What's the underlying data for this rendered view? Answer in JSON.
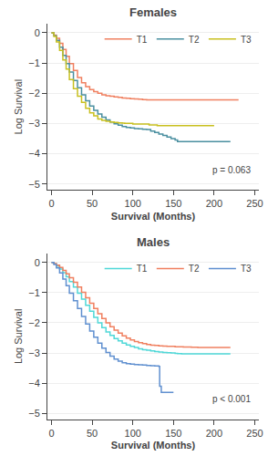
{
  "chart_data": [
    {
      "type": "step",
      "title": "Females",
      "x_label": "Survival (Months)",
      "y_label": "Log Survival",
      "xlim": [
        -5,
        255
      ],
      "ylim": [
        -5.2,
        0.3
      ],
      "xticks": [
        0,
        50,
        100,
        150,
        200,
        250
      ],
      "yticks": [
        0,
        -1,
        -2,
        -3,
        -4,
        -5
      ],
      "grid": "y",
      "legend": "upper right",
      "annotations": [
        {
          "text": "p = 0.063"
        }
      ],
      "series": [
        {
          "name": "T1",
          "color": "#f08060",
          "x": [
            0,
            3,
            6,
            10,
            14,
            18,
            22,
            27,
            32,
            37,
            42,
            47,
            52,
            57,
            62,
            67,
            72,
            77,
            82,
            87,
            92,
            97,
            102,
            107,
            112,
            117,
            120,
            230
          ],
          "values": [
            0,
            -0.08,
            -0.18,
            -0.35,
            -0.55,
            -0.78,
            -1.02,
            -1.25,
            -1.48,
            -1.65,
            -1.78,
            -1.88,
            -1.95,
            -2.0,
            -2.05,
            -2.08,
            -2.1,
            -2.12,
            -2.14,
            -2.16,
            -2.17,
            -2.18,
            -2.19,
            -2.2,
            -2.21,
            -2.22,
            -2.22,
            -2.22
          ]
        },
        {
          "name": "T2",
          "color": "#4a8fa0",
          "x": [
            0,
            3,
            6,
            10,
            14,
            18,
            22,
            27,
            32,
            37,
            42,
            47,
            52,
            57,
            62,
            67,
            72,
            77,
            82,
            87,
            92,
            97,
            102,
            107,
            112,
            117,
            122,
            127,
            132,
            137,
            142,
            147,
            152,
            155,
            220
          ],
          "values": [
            0,
            -0.1,
            -0.25,
            -0.48,
            -0.75,
            -1.02,
            -1.3,
            -1.58,
            -1.82,
            -2.05,
            -2.25,
            -2.42,
            -2.57,
            -2.69,
            -2.79,
            -2.88,
            -2.95,
            -3.01,
            -3.06,
            -3.1,
            -3.13,
            -3.15,
            -3.17,
            -3.18,
            -3.19,
            -3.2,
            -3.25,
            -3.3,
            -3.35,
            -3.4,
            -3.45,
            -3.5,
            -3.55,
            -3.6,
            -3.6
          ]
        },
        {
          "name": "T3",
          "color": "#c8c020",
          "x": [
            0,
            3,
            6,
            10,
            14,
            18,
            22,
            27,
            32,
            37,
            42,
            47,
            52,
            57,
            62,
            67,
            72,
            77,
            82,
            87,
            90,
            100,
            120,
            130,
            200
          ],
          "values": [
            0,
            -0.12,
            -0.3,
            -0.58,
            -0.9,
            -1.2,
            -1.55,
            -1.85,
            -2.1,
            -2.3,
            -2.5,
            -2.65,
            -2.75,
            -2.85,
            -2.9,
            -2.93,
            -2.95,
            -2.97,
            -2.98,
            -2.99,
            -3.0,
            -3.02,
            -3.05,
            -3.07,
            -3.07
          ]
        }
      ]
    },
    {
      "type": "step",
      "title": "Males",
      "x_label": "Survival (Months)",
      "y_label": "Log Survival",
      "xlim": [
        -5,
        255
      ],
      "ylim": [
        -5.2,
        0.3
      ],
      "xticks": [
        0,
        50,
        100,
        150,
        200,
        250
      ],
      "yticks": [
        0,
        -1,
        -2,
        -3,
        -4,
        -5
      ],
      "grid": "y",
      "legend": "upper right",
      "annotations": [
        {
          "text": "p < 0.001"
        }
      ],
      "series": [
        {
          "name": "T1",
          "color": "#50d8d8",
          "x": [
            0,
            3,
            6,
            10,
            14,
            18,
            22,
            27,
            32,
            37,
            42,
            47,
            52,
            57,
            62,
            67,
            72,
            77,
            82,
            87,
            92,
            97,
            102,
            107,
            112,
            117,
            122,
            127,
            132,
            137,
            142,
            147,
            152,
            155,
            160,
            220
          ],
          "values": [
            0,
            -0.05,
            -0.12,
            -0.22,
            -0.34,
            -0.48,
            -0.64,
            -0.82,
            -1.02,
            -1.22,
            -1.42,
            -1.62,
            -1.82,
            -2.0,
            -2.16,
            -2.3,
            -2.42,
            -2.52,
            -2.6,
            -2.67,
            -2.73,
            -2.78,
            -2.82,
            -2.86,
            -2.89,
            -2.91,
            -2.93,
            -2.95,
            -2.97,
            -2.98,
            -2.99,
            -3.0,
            -3.01,
            -3.02,
            -3.03,
            -3.03
          ]
        },
        {
          "name": "T2",
          "color": "#f08060",
          "x": [
            0,
            3,
            6,
            10,
            14,
            18,
            22,
            27,
            32,
            37,
            42,
            47,
            52,
            57,
            62,
            67,
            72,
            77,
            82,
            87,
            92,
            97,
            102,
            107,
            112,
            117,
            122,
            127,
            132,
            137,
            142,
            147,
            152,
            157,
            162,
            167,
            172,
            180,
            220
          ],
          "values": [
            0,
            -0.04,
            -0.09,
            -0.17,
            -0.27,
            -0.38,
            -0.51,
            -0.66,
            -0.82,
            -0.99,
            -1.17,
            -1.35,
            -1.53,
            -1.7,
            -1.86,
            -2.0,
            -2.13,
            -2.24,
            -2.34,
            -2.43,
            -2.51,
            -2.57,
            -2.62,
            -2.66,
            -2.69,
            -2.72,
            -2.74,
            -2.75,
            -2.76,
            -2.77,
            -2.78,
            -2.78,
            -2.79,
            -2.79,
            -2.8,
            -2.8,
            -2.81,
            -2.82,
            -2.82
          ]
        },
        {
          "name": "T3",
          "color": "#6090d0",
          "x": [
            0,
            3,
            6,
            10,
            14,
            18,
            22,
            27,
            32,
            37,
            42,
            47,
            52,
            57,
            62,
            67,
            72,
            77,
            82,
            87,
            92,
            97,
            102,
            107,
            112,
            117,
            122,
            127,
            132,
            133,
            135,
            150
          ],
          "values": [
            0,
            -0.07,
            -0.18,
            -0.35,
            -0.55,
            -0.77,
            -1.02,
            -1.27,
            -1.53,
            -1.79,
            -2.04,
            -2.27,
            -2.48,
            -2.67,
            -2.84,
            -2.98,
            -3.1,
            -3.2,
            -3.27,
            -3.32,
            -3.35,
            -3.37,
            -3.38,
            -3.39,
            -3.4,
            -3.41,
            -3.42,
            -3.43,
            -3.44,
            -4.1,
            -4.3,
            -4.3
          ]
        }
      ]
    }
  ]
}
